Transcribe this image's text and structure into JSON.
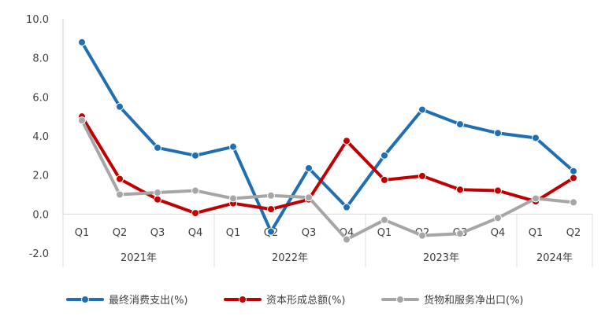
{
  "chart_data": {
    "type": "line",
    "title": "",
    "xlabel": "",
    "ylabel": "",
    "ylim": [
      -2,
      10
    ],
    "y_ticks": [
      "-2.0",
      "0.0",
      "2.0",
      "4.0",
      "6.0",
      "8.0",
      "10.0"
    ],
    "y_tick_values": [
      -2,
      0,
      2,
      4,
      6,
      8,
      10
    ],
    "categories": [
      "Q1",
      "Q2",
      "Q3",
      "Q4",
      "Q1",
      "Q2",
      "Q3",
      "Q4",
      "Q1",
      "Q2",
      "Q3",
      "Q4",
      "Q1",
      "Q2"
    ],
    "year_groups": [
      {
        "label": "2021年",
        "count": 4
      },
      {
        "label": "2022年",
        "count": 4
      },
      {
        "label": "2023年",
        "count": 4
      },
      {
        "label": "2024年",
        "count": 2
      }
    ],
    "grid": false,
    "legend_position": "bottom",
    "series": [
      {
        "name": "最终消费支出(%)",
        "color": "#1f6fb2",
        "values": [
          8.8,
          5.5,
          3.4,
          3.0,
          3.45,
          -0.9,
          2.35,
          0.35,
          3.0,
          5.35,
          4.6,
          4.15,
          3.9,
          2.2
        ]
      },
      {
        "name": "资本形成总额(%)",
        "color": "#c00000",
        "values": [
          5.0,
          1.8,
          0.75,
          0.05,
          0.55,
          0.25,
          0.75,
          3.75,
          1.75,
          1.95,
          1.25,
          1.2,
          0.65,
          1.85
        ]
      },
      {
        "name": "货物和服务净出口(%)",
        "color": "#a6a6a6",
        "values": [
          4.8,
          1.0,
          1.1,
          1.2,
          0.8,
          0.95,
          0.85,
          -1.3,
          -0.3,
          -1.1,
          -1.0,
          -0.2,
          0.8,
          0.6
        ]
      }
    ]
  }
}
